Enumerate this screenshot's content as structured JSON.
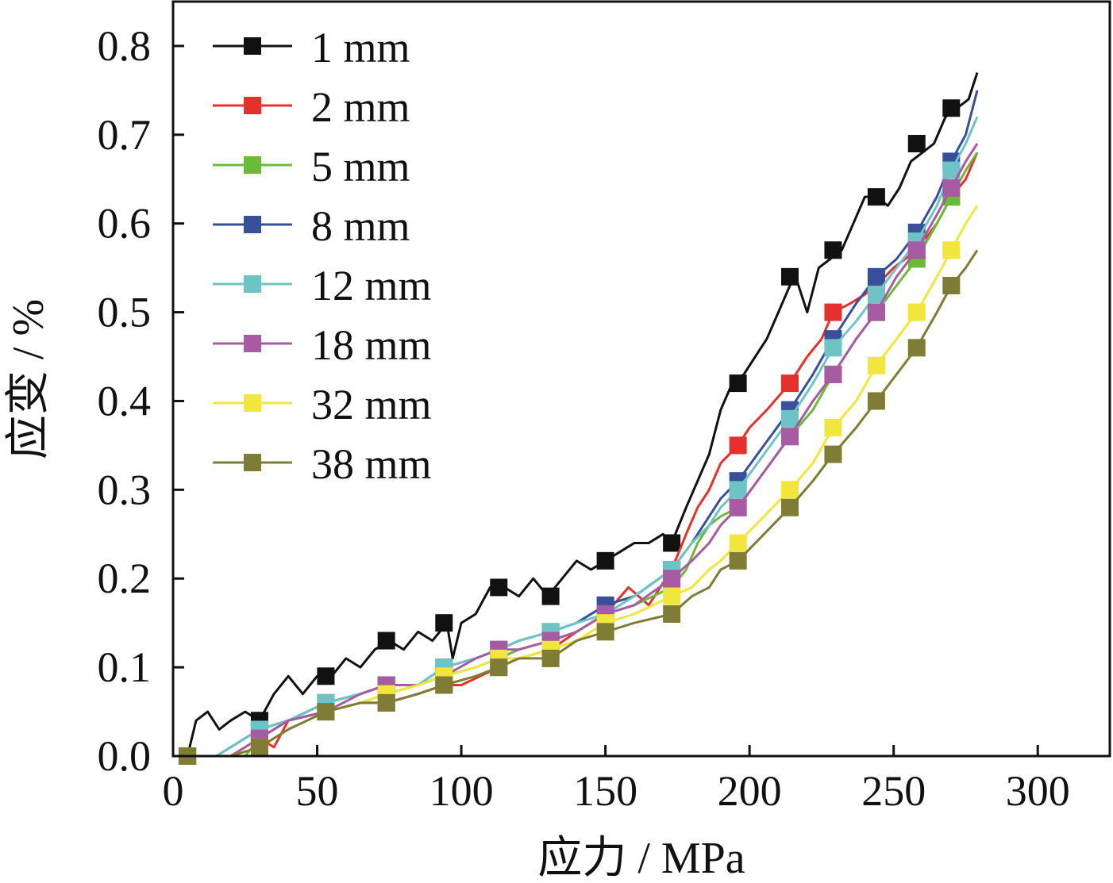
{
  "chart_data": {
    "type": "line",
    "title": "",
    "xlabel": "应力 / MPa",
    "ylabel": "应变 / %",
    "xlim": [
      0,
      325
    ],
    "ylim": [
      0,
      0.85
    ],
    "xticks": [
      "0",
      "50",
      "100",
      "150",
      "200",
      "250",
      "300"
    ],
    "yticks": [
      "0.0",
      "0.1",
      "0.2",
      "0.3",
      "0.4",
      "0.5",
      "0.6",
      "0.7",
      "0.8"
    ],
    "grid": false,
    "legend": "top-left",
    "series": [
      {
        "name": "1 mm",
        "color": "#111111",
        "x": [
          5,
          8,
          12,
          16,
          20,
          25,
          30,
          35,
          40,
          45,
          50,
          55,
          60,
          65,
          70,
          75,
          80,
          85,
          90,
          95,
          97,
          100,
          105,
          110,
          115,
          120,
          125,
          130,
          135,
          140,
          145,
          150,
          155,
          160,
          165,
          170,
          173,
          178,
          182,
          186,
          190,
          194,
          198,
          202,
          206,
          210,
          214,
          216,
          220,
          224,
          228,
          232,
          236,
          240,
          244,
          248,
          252,
          256,
          260,
          264,
          268,
          272,
          276,
          279
        ],
        "y": [
          0.0,
          0.04,
          0.05,
          0.03,
          0.04,
          0.05,
          0.04,
          0.07,
          0.09,
          0.07,
          0.09,
          0.09,
          0.11,
          0.1,
          0.12,
          0.13,
          0.12,
          0.14,
          0.13,
          0.15,
          0.11,
          0.15,
          0.16,
          0.19,
          0.19,
          0.18,
          0.2,
          0.18,
          0.2,
          0.22,
          0.21,
          0.22,
          0.23,
          0.24,
          0.24,
          0.25,
          0.24,
          0.28,
          0.31,
          0.34,
          0.39,
          0.42,
          0.43,
          0.45,
          0.47,
          0.5,
          0.53,
          0.54,
          0.5,
          0.55,
          0.56,
          0.57,
          0.6,
          0.63,
          0.63,
          0.62,
          0.64,
          0.67,
          0.68,
          0.69,
          0.72,
          0.73,
          0.74,
          0.77
        ],
        "markers_x": [
          5,
          30,
          53,
          74,
          94,
          113,
          131,
          150,
          173,
          196,
          214,
          229,
          244,
          258,
          270
        ],
        "markers_y": [
          0.0,
          0.04,
          0.09,
          0.13,
          0.15,
          0.19,
          0.18,
          0.22,
          0.24,
          0.42,
          0.54,
          0.57,
          0.63,
          0.69,
          0.73
        ]
      },
      {
        "name": "2 mm",
        "color": "#e5312b",
        "x": [
          5,
          12,
          20,
          30,
          35,
          40,
          53,
          65,
          74,
          85,
          94,
          100,
          113,
          120,
          131,
          140,
          150,
          158,
          165,
          173,
          178,
          182,
          186,
          190,
          196,
          200,
          206,
          214,
          220,
          225,
          229,
          235,
          240,
          244,
          250,
          258,
          265,
          270,
          275,
          279
        ],
        "y": [
          0.0,
          0.0,
          0.0,
          0.02,
          0.01,
          0.04,
          0.05,
          0.06,
          0.06,
          0.07,
          0.08,
          0.08,
          0.1,
          0.11,
          0.12,
          0.14,
          0.16,
          0.19,
          0.17,
          0.21,
          0.25,
          0.28,
          0.3,
          0.33,
          0.35,
          0.37,
          0.39,
          0.42,
          0.45,
          0.47,
          0.5,
          0.51,
          0.52,
          0.53,
          0.55,
          0.57,
          0.6,
          0.63,
          0.65,
          0.68
        ],
        "markers_x": [
          30,
          53,
          74,
          94,
          113,
          131,
          150,
          173,
          196,
          214,
          229,
          244,
          258,
          270
        ],
        "markers_y": [
          0.02,
          0.05,
          0.06,
          0.08,
          0.1,
          0.12,
          0.16,
          0.21,
          0.35,
          0.42,
          0.5,
          0.53,
          0.57,
          0.63
        ]
      },
      {
        "name": "5 mm",
        "color": "#6cba3a",
        "x": [
          5,
          15,
          20,
          25,
          30,
          40,
          53,
          65,
          74,
          85,
          94,
          105,
          113,
          120,
          131,
          140,
          150,
          160,
          173,
          178,
          182,
          186,
          190,
          196,
          205,
          214,
          222,
          229,
          237,
          244,
          251,
          258,
          265,
          270,
          275,
          279
        ],
        "y": [
          0.0,
          0.0,
          0.0,
          0.0,
          0.02,
          0.04,
          0.05,
          0.06,
          0.07,
          0.08,
          0.09,
          0.1,
          0.11,
          0.12,
          0.13,
          0.14,
          0.16,
          0.17,
          0.19,
          0.21,
          0.24,
          0.26,
          0.27,
          0.28,
          0.32,
          0.36,
          0.39,
          0.43,
          0.47,
          0.5,
          0.53,
          0.56,
          0.6,
          0.63,
          0.66,
          0.68
        ],
        "markers_x": [
          30,
          53,
          74,
          94,
          113,
          131,
          150,
          173,
          196,
          214,
          229,
          244,
          258,
          270
        ],
        "markers_y": [
          0.02,
          0.05,
          0.07,
          0.09,
          0.11,
          0.13,
          0.16,
          0.19,
          0.28,
          0.36,
          0.43,
          0.5,
          0.56,
          0.63
        ]
      },
      {
        "name": "8 mm",
        "color": "#384f9a",
        "x": [
          5,
          15,
          20,
          30,
          40,
          53,
          65,
          74,
          85,
          94,
          105,
          113,
          120,
          131,
          140,
          150,
          160,
          173,
          180,
          186,
          190,
          196,
          205,
          214,
          222,
          229,
          237,
          244,
          251,
          258,
          265,
          270,
          275,
          279
        ],
        "y": [
          0.0,
          0.0,
          0.01,
          0.03,
          0.04,
          0.06,
          0.07,
          0.08,
          0.08,
          0.1,
          0.11,
          0.12,
          0.13,
          0.14,
          0.15,
          0.17,
          0.18,
          0.21,
          0.24,
          0.27,
          0.29,
          0.31,
          0.35,
          0.39,
          0.43,
          0.47,
          0.51,
          0.54,
          0.56,
          0.59,
          0.63,
          0.67,
          0.7,
          0.75
        ],
        "markers_x": [
          30,
          53,
          74,
          94,
          113,
          131,
          150,
          173,
          196,
          214,
          229,
          244,
          258,
          270
        ],
        "markers_y": [
          0.03,
          0.06,
          0.08,
          0.1,
          0.12,
          0.14,
          0.17,
          0.21,
          0.31,
          0.39,
          0.47,
          0.54,
          0.59,
          0.67
        ]
      },
      {
        "name": "12 mm",
        "color": "#6ec4c4",
        "x": [
          5,
          15,
          20,
          30,
          40,
          53,
          65,
          74,
          85,
          94,
          105,
          113,
          120,
          131,
          140,
          150,
          160,
          173,
          180,
          186,
          190,
          196,
          205,
          214,
          222,
          229,
          237,
          244,
          251,
          258,
          265,
          270,
          275,
          279
        ],
        "y": [
          0.0,
          0.0,
          0.01,
          0.03,
          0.04,
          0.06,
          0.07,
          0.08,
          0.08,
          0.1,
          0.11,
          0.12,
          0.13,
          0.14,
          0.15,
          0.16,
          0.18,
          0.21,
          0.24,
          0.26,
          0.28,
          0.3,
          0.34,
          0.38,
          0.42,
          0.46,
          0.49,
          0.52,
          0.55,
          0.58,
          0.62,
          0.66,
          0.69,
          0.72
        ],
        "markers_x": [
          30,
          53,
          74,
          94,
          113,
          131,
          150,
          173,
          196,
          214,
          229,
          244,
          258,
          270
        ],
        "markers_y": [
          0.03,
          0.06,
          0.08,
          0.1,
          0.12,
          0.14,
          0.16,
          0.21,
          0.3,
          0.38,
          0.46,
          0.52,
          0.58,
          0.66
        ]
      },
      {
        "name": "18 mm",
        "color": "#a65ba3",
        "x": [
          5,
          15,
          20,
          30,
          40,
          53,
          65,
          74,
          85,
          94,
          105,
          113,
          120,
          131,
          140,
          150,
          160,
          173,
          180,
          186,
          190,
          196,
          205,
          214,
          222,
          229,
          237,
          244,
          251,
          258,
          265,
          270,
          275,
          279
        ],
        "y": [
          0.0,
          0.0,
          0.0,
          0.02,
          0.04,
          0.05,
          0.07,
          0.08,
          0.08,
          0.09,
          0.11,
          0.12,
          0.12,
          0.13,
          0.14,
          0.16,
          0.17,
          0.2,
          0.22,
          0.24,
          0.26,
          0.28,
          0.32,
          0.36,
          0.4,
          0.43,
          0.47,
          0.5,
          0.54,
          0.57,
          0.61,
          0.64,
          0.67,
          0.69
        ],
        "markers_x": [
          30,
          53,
          74,
          94,
          113,
          131,
          150,
          173,
          196,
          214,
          229,
          244,
          258,
          270
        ],
        "markers_y": [
          0.02,
          0.05,
          0.08,
          0.09,
          0.12,
          0.13,
          0.16,
          0.2,
          0.28,
          0.36,
          0.43,
          0.5,
          0.57,
          0.64
        ]
      },
      {
        "name": "32 mm",
        "color": "#f0e63c",
        "x": [
          5,
          15,
          20,
          30,
          40,
          53,
          65,
          74,
          85,
          94,
          105,
          113,
          120,
          131,
          140,
          150,
          160,
          173,
          180,
          186,
          190,
          196,
          205,
          214,
          222,
          229,
          237,
          244,
          251,
          258,
          265,
          270,
          275,
          279
        ],
        "y": [
          0.0,
          0.0,
          0.0,
          0.01,
          0.03,
          0.05,
          0.06,
          0.07,
          0.08,
          0.09,
          0.1,
          0.11,
          0.11,
          0.12,
          0.13,
          0.15,
          0.16,
          0.18,
          0.19,
          0.21,
          0.22,
          0.24,
          0.27,
          0.3,
          0.33,
          0.37,
          0.4,
          0.44,
          0.47,
          0.5,
          0.54,
          0.57,
          0.6,
          0.62
        ],
        "markers_x": [
          30,
          53,
          74,
          94,
          113,
          131,
          150,
          173,
          196,
          214,
          229,
          244,
          258,
          270
        ],
        "markers_y": [
          0.01,
          0.05,
          0.07,
          0.09,
          0.11,
          0.12,
          0.15,
          0.18,
          0.24,
          0.3,
          0.37,
          0.44,
          0.5,
          0.57
        ]
      },
      {
        "name": "38 mm",
        "color": "#7f7c35",
        "x": [
          5,
          15,
          20,
          30,
          40,
          53,
          65,
          74,
          85,
          94,
          105,
          113,
          120,
          131,
          140,
          150,
          160,
          173,
          180,
          186,
          190,
          196,
          205,
          214,
          222,
          229,
          237,
          244,
          251,
          258,
          265,
          270,
          275,
          279
        ],
        "y": [
          0.0,
          0.0,
          0.0,
          0.01,
          0.03,
          0.05,
          0.06,
          0.06,
          0.07,
          0.08,
          0.09,
          0.1,
          0.11,
          0.11,
          0.13,
          0.14,
          0.15,
          0.16,
          0.18,
          0.19,
          0.21,
          0.22,
          0.25,
          0.28,
          0.31,
          0.34,
          0.37,
          0.4,
          0.43,
          0.46,
          0.5,
          0.53,
          0.55,
          0.57
        ],
        "markers_x": [
          5,
          30,
          53,
          74,
          94,
          113,
          131,
          150,
          173,
          196,
          214,
          229,
          244,
          258,
          270
        ],
        "markers_y": [
          0.0,
          0.01,
          0.05,
          0.06,
          0.08,
          0.1,
          0.11,
          0.14,
          0.16,
          0.22,
          0.28,
          0.34,
          0.4,
          0.46,
          0.53
        ]
      }
    ]
  }
}
